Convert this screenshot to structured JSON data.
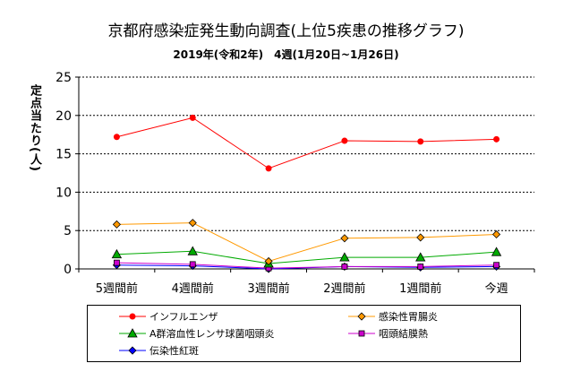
{
  "chart_data": {
    "type": "line",
    "title": "京都府感染症発生動向調査(上位5疾患の推移グラフ)",
    "subtitle": "2019年(令和2年)　4週(1月20日~1月26日)",
    "xlabel": "",
    "ylabel": "定点当たり(人)",
    "categories": [
      "5週間前",
      "4週間前",
      "3週間前",
      "2週間前",
      "1週間前",
      "今週"
    ],
    "ylim": [
      0,
      25
    ],
    "yticks": [
      "0",
      "5",
      "10",
      "15",
      "20",
      "25"
    ],
    "grid": true,
    "legend_position": "bottom",
    "series": [
      {
        "name": "インフルエンザ",
        "values": [
          17.2,
          19.7,
          13.1,
          16.7,
          16.6,
          16.9
        ],
        "color": "#ff0000",
        "marker": "circle"
      },
      {
        "name": "感染性胃腸炎",
        "values": [
          5.8,
          6.0,
          1.0,
          4.0,
          4.1,
          4.5
        ],
        "color": "#ff9900",
        "marker": "diamond"
      },
      {
        "name": "A群溶血性レンサ球菌咽頭炎",
        "values": [
          1.9,
          2.3,
          0.7,
          1.5,
          1.5,
          2.2
        ],
        "color": "#00aa00",
        "marker": "triangle"
      },
      {
        "name": "咽頭結膜熱",
        "values": [
          0.8,
          0.6,
          0.1,
          0.3,
          0.3,
          0.5
        ],
        "color": "#cc00cc",
        "marker": "square"
      },
      {
        "name": "伝染性紅斑",
        "values": [
          0.5,
          0.4,
          0.0,
          0.3,
          0.2,
          0.3
        ],
        "color": "#0000ff",
        "marker": "diamond"
      }
    ]
  }
}
